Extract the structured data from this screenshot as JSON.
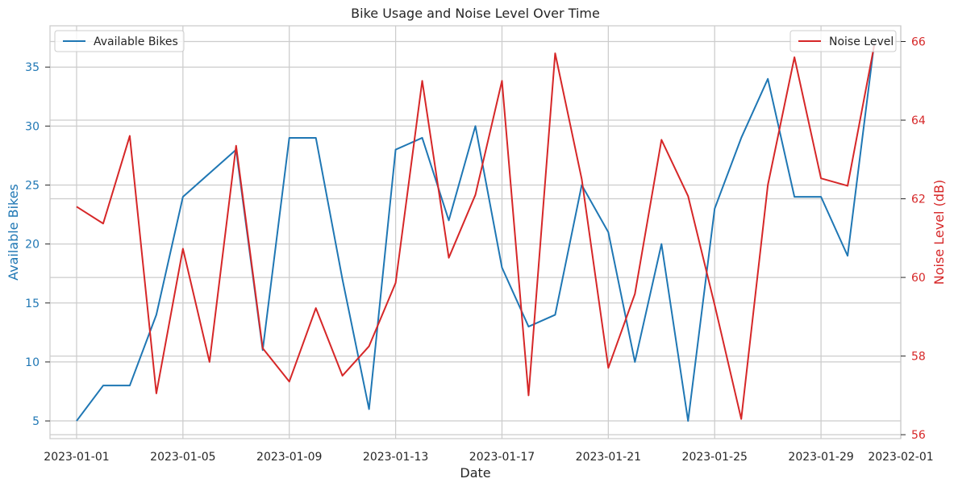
{
  "chart_data": {
    "type": "line",
    "title": "Bike Usage and Noise Level Over Time",
    "xlabel": "Date",
    "x": [
      "2023-01-01",
      "2023-01-02",
      "2023-01-03",
      "2023-01-04",
      "2023-01-05",
      "2023-01-06",
      "2023-01-07",
      "2023-01-08",
      "2023-01-09",
      "2023-01-10",
      "2023-01-11",
      "2023-01-12",
      "2023-01-13",
      "2023-01-14",
      "2023-01-15",
      "2023-01-16",
      "2023-01-17",
      "2023-01-18",
      "2023-01-19",
      "2023-01-20",
      "2023-01-21",
      "2023-01-22",
      "2023-01-23",
      "2023-01-24",
      "2023-01-25",
      "2023-01-26",
      "2023-01-27",
      "2023-01-28",
      "2023-01-29",
      "2023-01-30",
      "2023-01-31"
    ],
    "xticks": [
      "2023-01-01",
      "2023-01-05",
      "2023-01-09",
      "2023-01-13",
      "2023-01-17",
      "2023-01-21",
      "2023-01-25",
      "2023-01-29",
      "2023-02-01"
    ],
    "xlim": [
      "2022-12-31",
      "2023-02-01"
    ],
    "left_axis": {
      "label": "Available Bikes",
      "ylim": [
        3.5,
        38.5
      ],
      "ticks": [
        5,
        10,
        15,
        20,
        25,
        30,
        35
      ],
      "color": "#1f77b4"
    },
    "right_axis": {
      "label": "Noise Level (dB)",
      "ylim": [
        55.9,
        66.4
      ],
      "ticks": [
        56,
        58,
        60,
        62,
        64,
        66
      ],
      "color": "#d62728"
    },
    "series": [
      {
        "name": "Available Bikes",
        "axis": "left",
        "color": "#1f77b4",
        "legend_position": "upper-left",
        "values": [
          5,
          8,
          8,
          14,
          24,
          26,
          28,
          11,
          29,
          29,
          17,
          6,
          28,
          29,
          22,
          30,
          18,
          13,
          14,
          25,
          21,
          10,
          20,
          5,
          23,
          29,
          34,
          24,
          24,
          19,
          37
        ]
      },
      {
        "name": "Noise Level",
        "axis": "right",
        "color": "#d62728",
        "legend_position": "upper-right",
        "values": [
          61.8,
          61.37,
          63.6,
          57.05,
          60.73,
          57.85,
          63.35,
          58.2,
          57.35,
          59.22,
          57.5,
          58.25,
          59.86,
          65.0,
          60.5,
          62.1,
          65.0,
          57.0,
          65.7,
          62.5,
          57.7,
          59.58,
          63.5,
          62.07,
          59.3,
          56.4,
          62.35,
          65.6,
          62.52,
          62.33,
          65.9
        ]
      }
    ],
    "grid": true
  }
}
